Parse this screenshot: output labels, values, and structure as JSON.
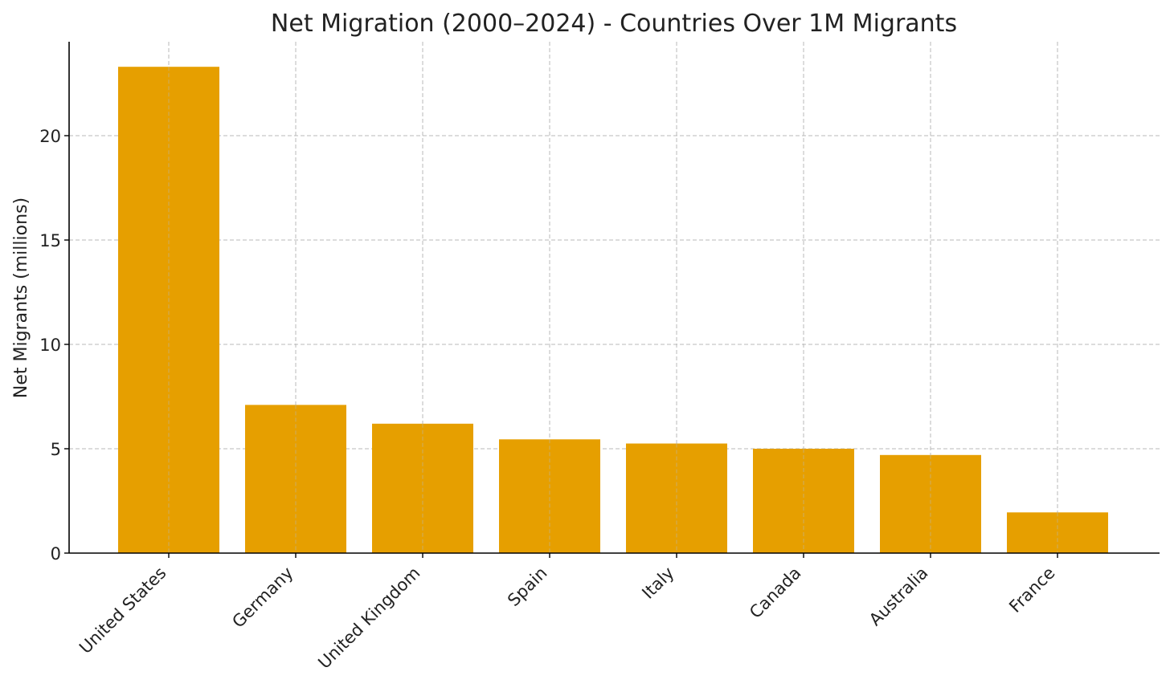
{
  "chart_data": {
    "type": "bar",
    "title": "Net Migration (2000–2024) - Countries Over 1M Migrants",
    "xlabel": "",
    "ylabel": "Net Migrants (millions)",
    "categories": [
      "United States",
      "Germany",
      "United Kingdom",
      "Spain",
      "Italy",
      "Canada",
      "Australia",
      "France"
    ],
    "values": [
      23.3,
      7.1,
      6.2,
      5.45,
      5.25,
      5.0,
      4.7,
      1.95
    ],
    "ylim": [
      0,
      24.5
    ],
    "yticks": [
      0,
      5,
      10,
      15,
      20
    ],
    "grid": true,
    "bar_color": "#E69F00",
    "legend": "none"
  }
}
